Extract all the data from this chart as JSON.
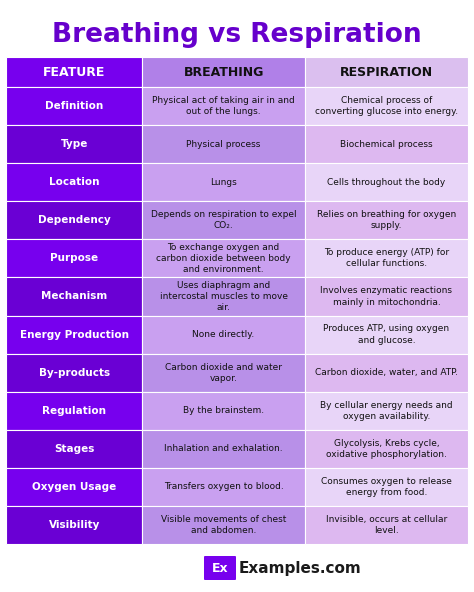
{
  "title": "Breathing vs Respiration",
  "title_color": "#6600cc",
  "bg_color": "#ffffff",
  "col1_header_bg": "#7700ee",
  "col2_header_bg": "#b080e8",
  "col3_header_bg": "#dbbfef",
  "odd_col1": "#7700ee",
  "odd_col2": "#c9a0f0",
  "odd_col3": "#e8d5f8",
  "even_col1": "#6a00d4",
  "even_col2": "#b890e8",
  "even_col3": "#ddb8f0",
  "rows": [
    {
      "feature": "Definition",
      "breathing": "Physical act of taking air in and\nout of the lungs.",
      "respiration": "Chemical process of\nconverting glucose into energy."
    },
    {
      "feature": "Type",
      "breathing": "Physical process",
      "respiration": "Biochemical process"
    },
    {
      "feature": "Location",
      "breathing": "Lungs",
      "respiration": "Cells throughout the body"
    },
    {
      "feature": "Dependency",
      "breathing": "Depends on respiration to expel\nCO₂.",
      "respiration": "Relies on breathing for oxygen\nsupply."
    },
    {
      "feature": "Purpose",
      "breathing": "To exchange oxygen and\ncarbon dioxide between body\nand environment.",
      "respiration": "To produce energy (ATP) for\ncellular functions."
    },
    {
      "feature": "Mechanism",
      "breathing": "Uses diaphragm and\nintercostal muscles to move\nair.",
      "respiration": "Involves enzymatic reactions\nmainly in mitochondria."
    },
    {
      "feature": "Energy Production",
      "breathing": "None directly.",
      "respiration": "Produces ATP, using oxygen\nand glucose."
    },
    {
      "feature": "By-products",
      "breathing": "Carbon dioxide and water\nvapor.",
      "respiration": "Carbon dioxide, water, and ATP."
    },
    {
      "feature": "Regulation",
      "breathing": "By the brainstem.",
      "respiration": "By cellular energy needs and\noxygen availability."
    },
    {
      "feature": "Stages",
      "breathing": "Inhalation and exhalation.",
      "respiration": "Glycolysis, Krebs cycle,\noxidative phosphorylation."
    },
    {
      "feature": "Oxygen Usage",
      "breathing": "Transfers oxygen to blood.",
      "respiration": "Consumes oxygen to release\nenergy from food."
    },
    {
      "feature": "Visibility",
      "breathing": "Visible movements of chest\nand abdomen.",
      "respiration": "Invisible, occurs at cellular\nlevel."
    }
  ],
  "footer_box_color": "#7700ee",
  "footer_box_text": "Ex",
  "footer_main_text": "Examples.com",
  "footer_text_color": "#1a1a1a"
}
